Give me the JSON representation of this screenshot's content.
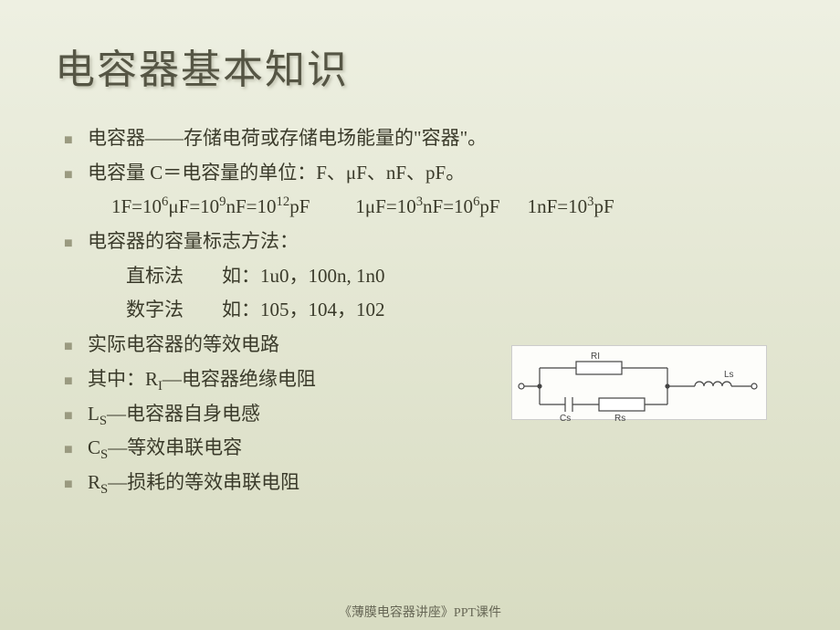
{
  "title": "电容器基本知识",
  "lines": [
    {
      "bullet": true,
      "text": "电容器——存储电荷或存储电场能量的\"容器\"。"
    },
    {
      "bullet": true,
      "text": "电容量 C＝电容量的单位：F、μF、nF、pF。"
    },
    {
      "bullet": false,
      "indent": 1,
      "html": "1F=10<sup>6</sup>μF=10<sup>9</sup>nF=10<sup>12</sup>pF<span class='gap'></span>1μF=10<sup>3</sup>nF=10<sup>6</sup>pF<span class='gap-sm'></span>1nF=10<sup>3</sup>pF"
    },
    {
      "bullet": true,
      "text": "电容器的容量标志方法："
    },
    {
      "bullet": false,
      "indent": 2,
      "text": "直标法　　如：1u0，100n, 1n0"
    },
    {
      "bullet": false,
      "indent": 2,
      "text": "数字法　　如：105，104，102"
    },
    {
      "bullet": true,
      "text": "实际电容器的等效电路"
    },
    {
      "bullet": true,
      "html": "其中：R<sub>I</sub>—电容器绝缘电阻"
    },
    {
      "bullet": true,
      "html": "L<sub>S</sub>—电容器自身电感"
    },
    {
      "bullet": true,
      "html": "C<sub>S</sub>—等效串联电容"
    },
    {
      "bullet": true,
      "html": "R<sub>S</sub>—损耗的等效串联电阻"
    }
  ],
  "footer": "《薄膜电容器讲座》PPT课件",
  "circuit": {
    "labels": {
      "ri": "RI",
      "cs": "Cs",
      "rs": "Rs",
      "ls": "Ls"
    },
    "stroke": "#444444",
    "fontsize": 10
  }
}
